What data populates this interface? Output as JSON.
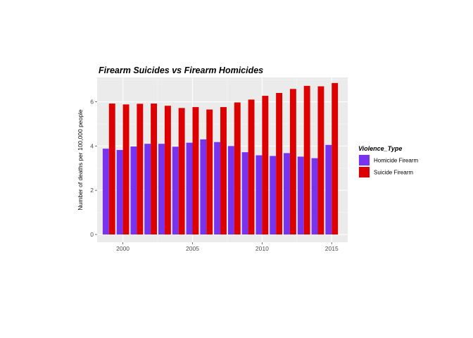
{
  "chart_data": {
    "type": "bar",
    "title": "Firearm Suicides vs Firearm Homicides",
    "xlabel": "",
    "ylabel": "Number of deaths per 100,000 people",
    "x": [
      1999,
      2000,
      2001,
      2002,
      2003,
      2004,
      2005,
      2006,
      2007,
      2008,
      2009,
      2010,
      2011,
      2012,
      2013,
      2014,
      2015
    ],
    "x_ticks": [
      2000,
      2005,
      2010,
      2015
    ],
    "y_ticks": [
      0,
      2,
      4,
      6
    ],
    "xlim": [
      1998.15,
      2016.15
    ],
    "ylim": [
      -0.35,
      7.1
    ],
    "grid": true,
    "legend": {
      "title": "Violence_Type",
      "placement": "right"
    },
    "series": [
      {
        "name": "Homicide Firearm",
        "color": "#7733ee",
        "values": [
          3.88,
          3.82,
          3.98,
          4.1,
          4.1,
          3.97,
          4.15,
          4.3,
          4.18,
          4.0,
          3.72,
          3.58,
          3.55,
          3.68,
          3.52,
          3.45,
          4.05
        ]
      },
      {
        "name": "Suicide Firearm",
        "color": "#dd0000",
        "values": [
          5.92,
          5.88,
          5.91,
          5.92,
          5.82,
          5.72,
          5.76,
          5.65,
          5.76,
          5.97,
          6.1,
          6.27,
          6.4,
          6.58,
          6.72,
          6.7,
          6.85
        ]
      }
    ]
  }
}
